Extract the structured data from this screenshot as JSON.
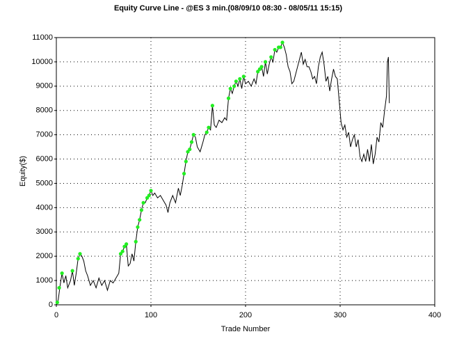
{
  "chart_data": {
    "type": "line",
    "title": "Equity Curve Line - @ES 3 min.(08/09/10 08:30 - 08/05/11 15:15)",
    "xlabel": "Trade Number",
    "ylabel": "Equity($)",
    "xlim": [
      0,
      400
    ],
    "ylim": [
      0,
      11000
    ],
    "xticks": [
      0,
      100,
      200,
      300,
      400
    ],
    "yticks": [
      0,
      1000,
      2000,
      3000,
      4000,
      5000,
      6000,
      7000,
      8000,
      9000,
      10000,
      11000
    ],
    "grid": true,
    "series": [
      {
        "color": "#000000",
        "x": [
          0,
          2,
          4,
          6,
          8,
          10,
          12,
          15,
          17,
          19,
          21,
          23,
          25,
          27,
          29,
          31,
          33,
          36,
          39,
          42,
          45,
          48,
          51,
          54,
          57,
          60,
          63,
          66,
          68,
          70,
          72,
          74,
          76,
          78,
          80,
          82,
          84,
          86,
          88,
          90,
          92,
          94,
          96,
          98,
          100,
          102,
          104,
          107,
          110,
          113,
          116,
          118,
          120,
          123,
          126,
          129,
          131,
          133,
          135,
          137,
          139,
          141,
          143,
          145,
          147,
          149,
          152,
          155,
          157,
          159,
          161,
          163,
          165,
          167,
          169,
          172,
          175,
          178,
          180,
          182,
          184,
          186,
          188,
          190,
          192,
          194,
          196,
          198,
          200,
          203,
          206,
          209,
          211,
          213,
          215,
          217,
          219,
          221,
          223,
          225,
          227,
          229,
          231,
          233,
          235,
          237,
          239,
          241,
          243,
          245,
          247,
          249,
          251,
          253,
          255,
          257,
          259,
          261,
          263,
          265,
          267,
          269,
          271,
          273,
          275,
          277,
          279,
          281,
          283,
          285,
          287,
          289,
          291,
          293,
          295,
          297,
          299,
          301,
          303,
          305,
          307,
          309,
          311,
          313,
          315,
          317,
          319,
          321,
          323,
          325,
          327,
          329,
          331,
          333,
          335,
          337,
          339,
          341,
          343,
          345,
          347,
          349,
          350,
          351,
          352
        ],
        "values": [
          0,
          200,
          800,
          1300,
          900,
          1200,
          700,
          1000,
          1400,
          800,
          1300,
          1900,
          2100,
          2000,
          1800,
          1400,
          1200,
          800,
          1000,
          700,
          1100,
          800,
          1000,
          600,
          1000,
          900,
          1100,
          1300,
          2100,
          2200,
          2400,
          2500,
          1600,
          1700,
          2100,
          1800,
          2600,
          3200,
          3500,
          3900,
          4200,
          4200,
          4400,
          4500,
          4700,
          4500,
          4600,
          4400,
          4500,
          4300,
          4100,
          3800,
          4200,
          4500,
          4200,
          4800,
          4500,
          4900,
          5400,
          5900,
          6300,
          6400,
          6700,
          7000,
          6900,
          6500,
          6300,
          6700,
          7000,
          7100,
          7300,
          7200,
          8200,
          7400,
          7300,
          7600,
          7500,
          7700,
          7600,
          8500,
          8900,
          8700,
          9000,
          9200,
          9000,
          9300,
          8900,
          9400,
          9100,
          9200,
          9000,
          9300,
          9100,
          9600,
          9700,
          9800,
          9400,
          10000,
          9500,
          9900,
          10200,
          10000,
          10500,
          10400,
          10600,
          10600,
          10800,
          10600,
          10300,
          9800,
          9600,
          9100,
          9200,
          9500,
          9800,
          10100,
          10400,
          9900,
          10100,
          9800,
          9800,
          9600,
          9300,
          9400,
          9100,
          9800,
          10200,
          10400,
          9900,
          9200,
          9400,
          8800,
          9300,
          9700,
          9400,
          9300,
          8400,
          7500,
          7200,
          7400,
          6900,
          7100,
          6500,
          6800,
          7000,
          6500,
          6800,
          6100,
          5900,
          6200,
          5900,
          6400,
          5900,
          6600,
          5800,
          6200,
          6900,
          6700,
          7500,
          7300,
          8000,
          8600,
          10000,
          10200,
          8300
        ]
      }
    ],
    "highlights": {
      "color": "#22ee22",
      "x": [
        1,
        3,
        6,
        17,
        23,
        25,
        68,
        70,
        72,
        74,
        84,
        86,
        88,
        90,
        92,
        96,
        98,
        100,
        135,
        137,
        139,
        141,
        143,
        145,
        159,
        161,
        165,
        182,
        184,
        188,
        190,
        194,
        198,
        213,
        215,
        217,
        221,
        227,
        231,
        235,
        237,
        239
      ],
      "values": [
        100,
        700,
        1300,
        1400,
        1900,
        2100,
        2100,
        2200,
        2400,
        2500,
        2600,
        3200,
        3500,
        3900,
        4200,
        4400,
        4500,
        4700,
        5400,
        5900,
        6300,
        6400,
        6700,
        7000,
        7100,
        7300,
        8200,
        8500,
        8900,
        9000,
        9200,
        9300,
        9400,
        9600,
        9700,
        9800,
        10000,
        10200,
        10500,
        10600,
        10600,
        10800
      ]
    }
  }
}
